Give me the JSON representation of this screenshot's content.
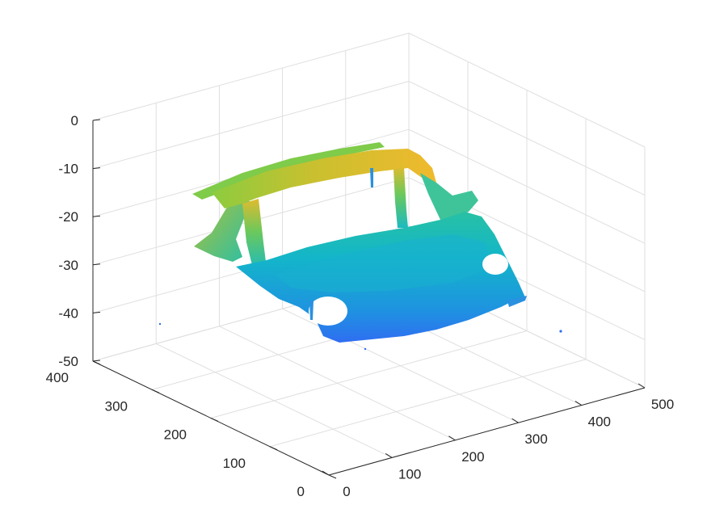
{
  "chart_data": {
    "type": "scatter",
    "projection": "3d",
    "grid": true,
    "title": "",
    "xlabel": "",
    "ylabel": "",
    "zlabel": "",
    "xlim": [
      0,
      500
    ],
    "ylim": [
      0,
      400
    ],
    "zlim": [
      -50,
      0
    ],
    "x_ticks": [
      "0",
      "100",
      "200",
      "300",
      "400",
      "500"
    ],
    "y_ticks": [
      "0",
      "100",
      "200",
      "300",
      "400"
    ],
    "z_ticks": [
      "0",
      "-10",
      "-20",
      "-30",
      "-40",
      "-50"
    ],
    "colormap": "parula",
    "color_by": "z",
    "colors": {
      "low": "#2f6ef2",
      "mid": "#13b6c9",
      "high": "#f0b92d"
    },
    "point_cloud_regions": [
      {
        "part": "roof_front_bar",
        "z": -5
      },
      {
        "part": "roof_rear_panel",
        "z": -12
      },
      {
        "part": "pillars",
        "z": -20
      },
      {
        "part": "hood_and_body",
        "z": -30
      },
      {
        "part": "bumper",
        "z": -40
      }
    ]
  }
}
